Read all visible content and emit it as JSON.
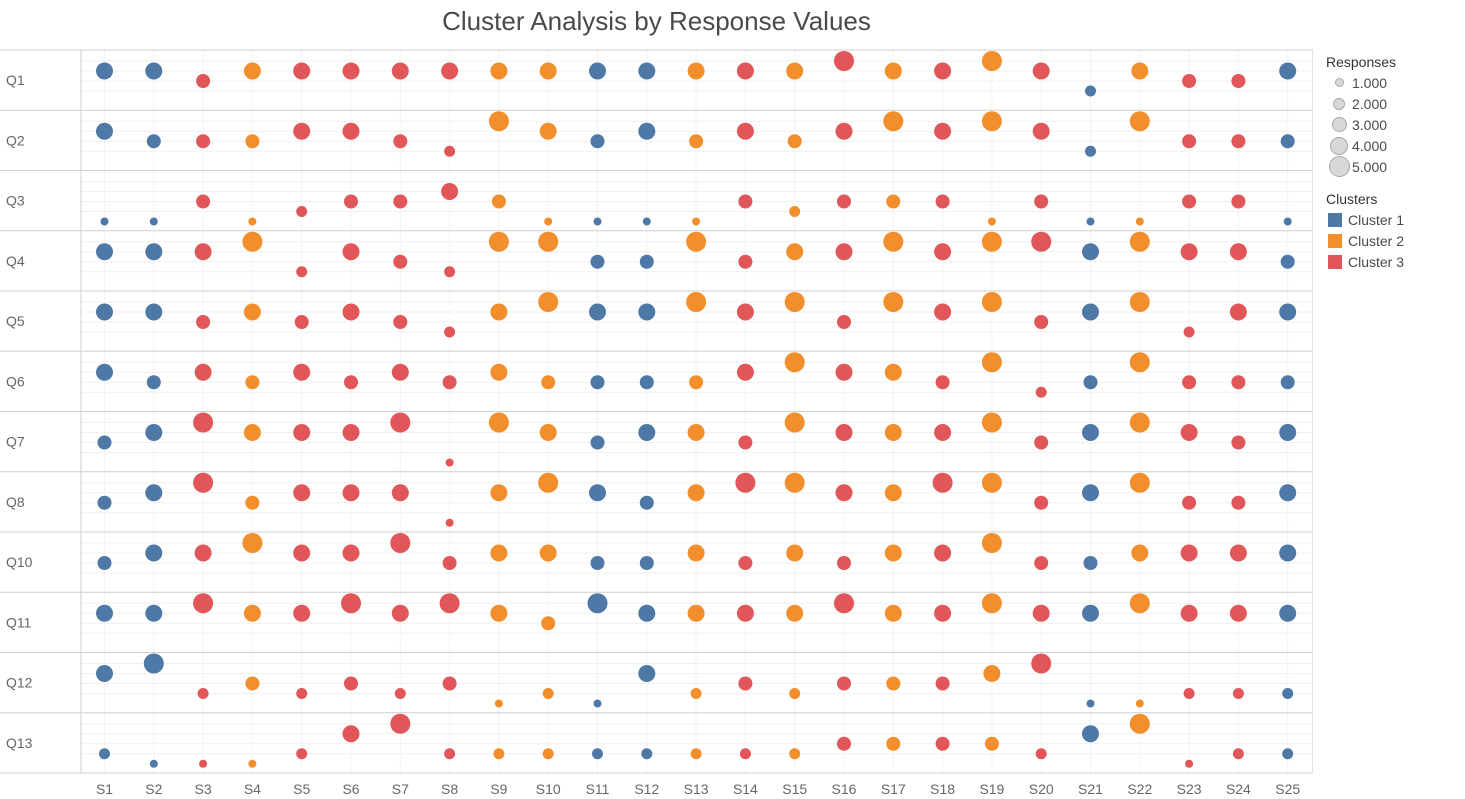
{
  "chart_data": {
    "type": "scatter",
    "title": "Cluster Analysis by Response Values",
    "x_categories": [
      "S1",
      "S2",
      "S3",
      "S4",
      "S5",
      "S6",
      "S7",
      "S8",
      "S9",
      "S10",
      "S11",
      "S12",
      "S13",
      "S14",
      "S15",
      "S16",
      "S17",
      "S18",
      "S19",
      "S20",
      "S21",
      "S22",
      "S23",
      "S24",
      "S25"
    ],
    "y_categories": [
      "Q1",
      "Q2",
      "Q3",
      "Q4",
      "Q5",
      "Q6",
      "Q7",
      "Q8",
      "Q10",
      "Q11",
      "Q12",
      "Q13"
    ],
    "value_range": [
      1,
      5
    ],
    "grid": true,
    "legend_position": "right",
    "size_legend": {
      "title": "Responses",
      "entries": [
        "1.000",
        "2.000",
        "3.000",
        "4.000",
        "5.000"
      ],
      "values": [
        1,
        2,
        3,
        4,
        5
      ]
    },
    "cluster_legend": {
      "title": "Clusters",
      "entries": [
        {
          "label": "Cluster 1",
          "color": "#4e79a7"
        },
        {
          "label": "Cluster 2",
          "color": "#f28e2b"
        },
        {
          "label": "Cluster 3",
          "color": "#e15759"
        }
      ]
    },
    "clusters": [
      1,
      1,
      3,
      2,
      3,
      3,
      3,
      3,
      2,
      2,
      1,
      1,
      2,
      3,
      2,
      3,
      2,
      3,
      2,
      3,
      1,
      2,
      3,
      3,
      1
    ],
    "values": [
      [
        4,
        4,
        3,
        4,
        4,
        4,
        4,
        4,
        4,
        4,
        4,
        4,
        4,
        4,
        4,
        5,
        4,
        4,
        5,
        4,
        2,
        4,
        3,
        3,
        4
      ],
      [
        4,
        3,
        3,
        3,
        4,
        4,
        3,
        2,
        5,
        4,
        3,
        4,
        3,
        4,
        3,
        4,
        5,
        4,
        5,
        4,
        2,
        5,
        3,
        3,
        3
      ],
      [
        1,
        1,
        3,
        1,
        2,
        3,
        3,
        4,
        3,
        1,
        1,
        1,
        1,
        3,
        2,
        3,
        3,
        3,
        1,
        3,
        1,
        1,
        3,
        3,
        1
      ],
      [
        4,
        4,
        4,
        5,
        2,
        4,
        3,
        2,
        5,
        5,
        3,
        3,
        5,
        3,
        4,
        4,
        5,
        4,
        5,
        5,
        4,
        5,
        4,
        4,
        3
      ],
      [
        4,
        4,
        3,
        4,
        3,
        4,
        3,
        2,
        4,
        5,
        4,
        4,
        5,
        4,
        5,
        3,
        5,
        4,
        5,
        3,
        4,
        5,
        2,
        4,
        4
      ],
      [
        4,
        3,
        4,
        3,
        4,
        3,
        4,
        3,
        4,
        3,
        3,
        3,
        3,
        4,
        5,
        4,
        4,
        3,
        5,
        2,
        3,
        5,
        3,
        3,
        3
      ],
      [
        3,
        4,
        5,
        4,
        4,
        4,
        5,
        1,
        5,
        4,
        3,
        4,
        4,
        3,
        5,
        4,
        4,
        4,
        5,
        3,
        4,
        5,
        4,
        3,
        4
      ],
      [
        3,
        4,
        5,
        3,
        4,
        4,
        4,
        1,
        4,
        5,
        4,
        3,
        4,
        5,
        5,
        4,
        4,
        5,
        5,
        3,
        4,
        5,
        3,
        3,
        4
      ],
      [
        3,
        4,
        4,
        5,
        4,
        4,
        5,
        3,
        4,
        4,
        3,
        3,
        4,
        3,
        4,
        3,
        4,
        4,
        5,
        3,
        3,
        4,
        4,
        4,
        4
      ],
      [
        4,
        4,
        5,
        4,
        4,
        5,
        4,
        5,
        4,
        3,
        5,
        4,
        4,
        4,
        4,
        5,
        4,
        4,
        5,
        4,
        4,
        5,
        4,
        4,
        4
      ],
      [
        4,
        5,
        2,
        3,
        2,
        3,
        2,
        3,
        1,
        2,
        1,
        4,
        2,
        3,
        2,
        3,
        3,
        3,
        4,
        5,
        1,
        1,
        2,
        2,
        2
      ],
      [
        2,
        1,
        1,
        1,
        2,
        4,
        5,
        2,
        2,
        2,
        2,
        2,
        2,
        2,
        2,
        3,
        3,
        3,
        3,
        2,
        4,
        5,
        1,
        2,
        2
      ]
    ]
  }
}
